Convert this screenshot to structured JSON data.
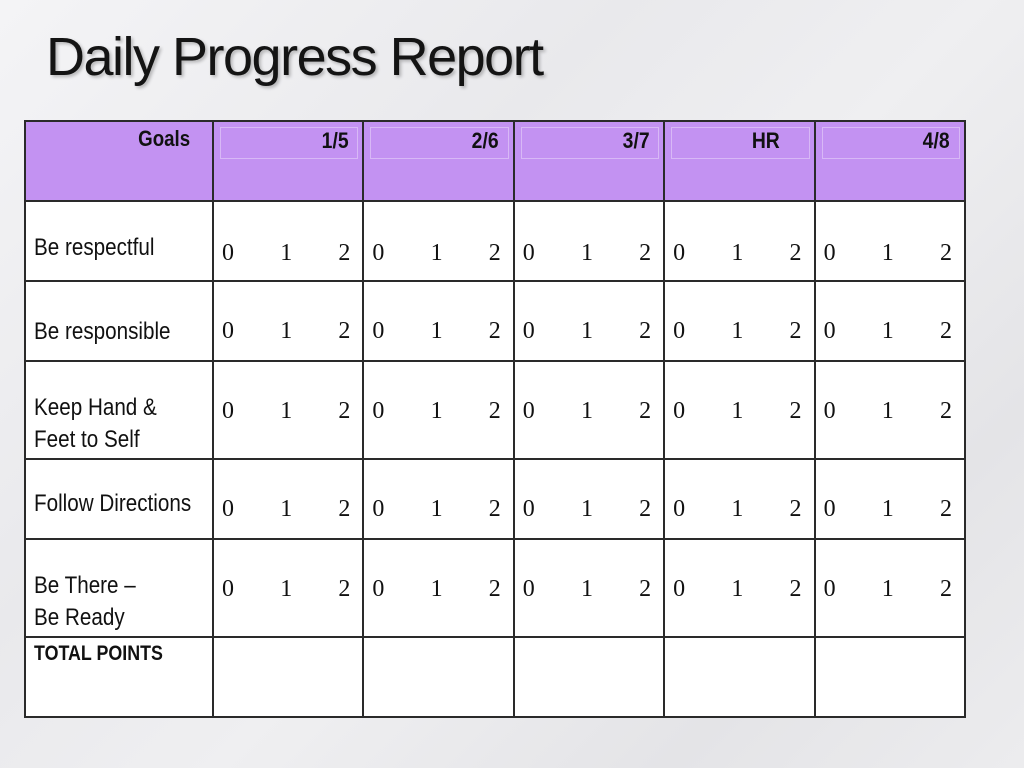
{
  "title": "Daily Progress Report",
  "table": {
    "goals_header": "Goals",
    "days": [
      "1/5",
      "2/6",
      "3/7",
      "HR",
      "4/8"
    ],
    "scale": [
      "0",
      "1",
      "2"
    ],
    "rows": [
      {
        "lines": [
          "Be respectful"
        ]
      },
      {
        "lines": [
          "Be responsible"
        ]
      },
      {
        "lines": [
          "Keep Hand &",
          "Feet to Self"
        ]
      },
      {
        "lines": [
          "Follow Directions"
        ]
      },
      {
        "lines": [
          "Be There –",
          "Be Ready"
        ]
      }
    ],
    "total_label": "TOTAL POINTS"
  }
}
